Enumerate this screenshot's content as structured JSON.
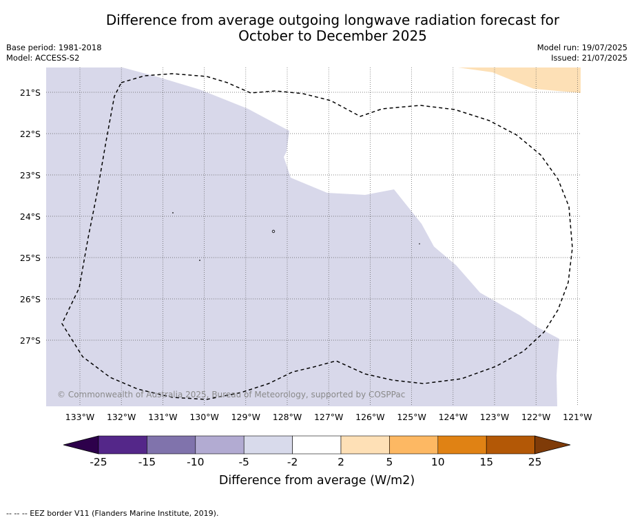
{
  "header": {
    "title_line1": "Difference from average outgoing longwave radiation forecast for",
    "title_line2": "October to December 2025",
    "base_period": "Base period: 1981-2018",
    "model": "Model: ACCESS-S2",
    "model_run": "Model run: 19/07/2025",
    "issued": "Issued: 21/07/2025"
  },
  "map": {
    "lat_labels": [
      "21°S",
      "22°S",
      "23°S",
      "24°S",
      "25°S",
      "26°S",
      "27°S"
    ],
    "lon_labels": [
      "133°W",
      "132°W",
      "131°W",
      "130°W",
      "129°W",
      "128°W",
      "127°W",
      "126°W",
      "125°W",
      "124°W",
      "123°W",
      "122°W",
      "121°W"
    ],
    "copyright": "© Commonwealth of Australia 2025, Bureau of Meteorology, supported by COSPPac",
    "fill_colors": {
      "negative_band": "#d8d8ea",
      "positive_band": "#fde0b6"
    }
  },
  "colorbar": {
    "ticks": [
      "-25",
      "-15",
      "-10",
      "-5",
      "-2",
      "2",
      "5",
      "10",
      "15",
      "25"
    ],
    "colors": [
      "#2d004b",
      "#542789",
      "#8073ac",
      "#b2abd2",
      "#d8daeb",
      "#ffffff",
      "#fee0b6",
      "#fdb863",
      "#e08214",
      "#b35806",
      "#7f3b08"
    ],
    "label": "Difference from average (W/m2)"
  },
  "footer": {
    "eez_note": "--  --  -- EEZ border V11 (Flanders Marine Institute, 2019)."
  }
}
